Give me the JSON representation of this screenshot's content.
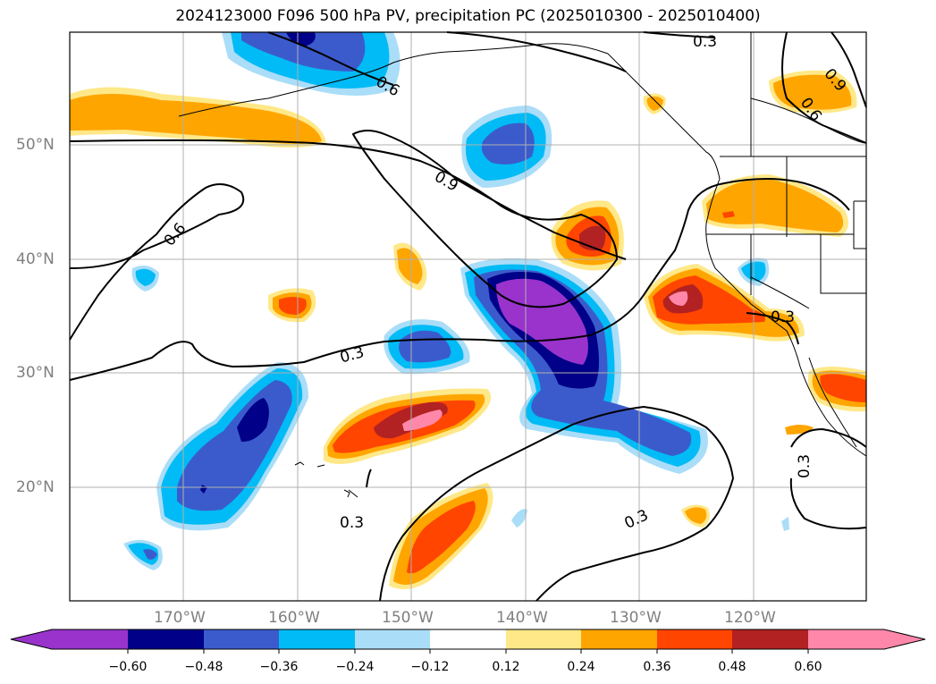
{
  "title": "2024123000 F096 500 hPa PV, precipitation PC (2025010300 - 2025010400)",
  "map": {
    "lat_labels": [
      "50°N",
      "40°N",
      "30°N",
      "20°N"
    ],
    "lon_labels": [
      "170°W",
      "160°W",
      "150°W",
      "140°W",
      "130°W",
      "120°W"
    ],
    "contour_labels": [
      "0.6",
      "0.9",
      "0.3",
      "0.6",
      "0.3",
      "0.3",
      "0.3",
      "0.3",
      "0.9",
      "0.6",
      "0.3"
    ],
    "grid": true
  },
  "colorbar": {
    "ticks": [
      "−0.60",
      "−0.48",
      "−0.36",
      "−0.24",
      "−0.12",
      "0.12",
      "0.24",
      "0.36",
      "0.48",
      "0.60"
    ],
    "colors": [
      "#9933cc",
      "#000088",
      "#3b5bcc",
      "#00bbf5",
      "#aaddf8",
      "#ffffff",
      "#ffe888",
      "#ffa500",
      "#ff4500",
      "#b22222",
      "#ff88aa"
    ],
    "extend": "both"
  }
}
